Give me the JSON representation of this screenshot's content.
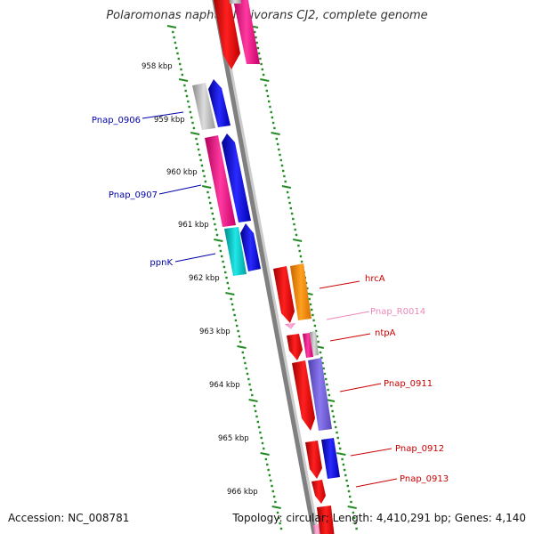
{
  "title": "Polaromonas naphthalenivorans CJ2, complete genome",
  "footer": {
    "accession": "Accession: NC_008781",
    "topology": "Topology: circular; Length: 4,410,291 bp; Genes: 4,140"
  },
  "ticks": [
    "958 kbp",
    "959 kbp",
    "960 kbp",
    "961 kbp",
    "962 kbp",
    "963 kbp",
    "964 kbp",
    "965 kbp",
    "966 kbp"
  ],
  "gene_labels": [
    {
      "text": "Pnap_0906",
      "color": "#0000aa"
    },
    {
      "text": "Pnap_0907",
      "color": "#0000aa"
    },
    {
      "text": "ppnK",
      "color": "#0000aa"
    },
    {
      "text": "hrcA",
      "color": "#cc0000"
    },
    {
      "text": "Pnap_R0014",
      "color": "#ee88bb"
    },
    {
      "text": "ntpA",
      "color": "#cc0000"
    },
    {
      "text": "Pnap_0911",
      "color": "#cc0000"
    },
    {
      "text": "Pnap_0912",
      "color": "#cc0000"
    },
    {
      "text": "Pnap_0913",
      "color": "#cc0000"
    }
  ],
  "colors": {
    "backbone": "#888888",
    "tick": "#228b22",
    "red": "#ff0000",
    "pink": "#ff1493",
    "blue": "#0000ff",
    "gray": "#c0c0c0",
    "cyan": "#00cccc",
    "orange": "#ff8c00",
    "purple": "#7b68ee",
    "lightpink": "#ff99cc"
  }
}
